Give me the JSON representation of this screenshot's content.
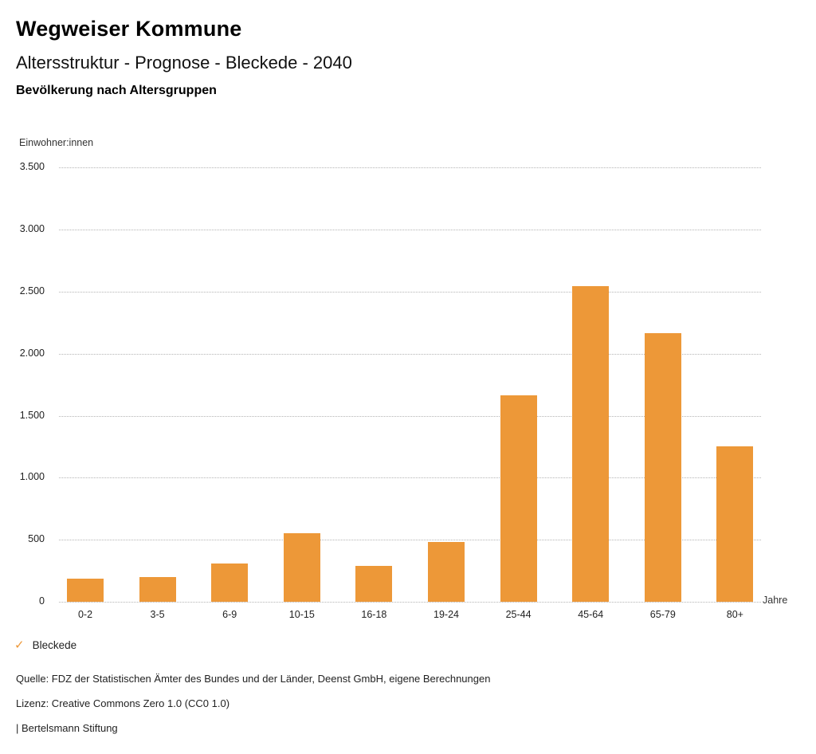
{
  "header": {
    "title": "Wegweiser Kommune",
    "subtitle": "Altersstruktur - Prognose - Bleckede - 2040",
    "chart_label": "Bevölkerung nach Altersgruppen"
  },
  "chart_data": {
    "type": "bar",
    "title": "Bevölkerung nach Altersgruppen",
    "ylabel": "Einwohner:innen",
    "xlabel": "Jahre",
    "categories": [
      "0-2",
      "3-5",
      "6-9",
      "10-15",
      "16-18",
      "19-24",
      "25-44",
      "45-64",
      "65-79",
      "80+"
    ],
    "series": [
      {
        "name": "Bleckede",
        "values": [
          185,
          200,
          310,
          555,
          290,
          480,
          1665,
          2545,
          2165,
          1255
        ]
      }
    ],
    "ylim": [
      0,
      3500
    ],
    "ytick_step": 500,
    "ytick_labels": [
      "0",
      "500",
      "1.000",
      "1.500",
      "2.000",
      "2.500",
      "3.000",
      "3.500"
    ],
    "grid": "horizontal-dotted",
    "legend_position": "bottom-left",
    "bar_color": "#ED9838"
  },
  "legend": {
    "check_icon": "✓",
    "items": [
      {
        "label": "Bleckede",
        "selected": true
      }
    ]
  },
  "footer": {
    "source": "Quelle: FDZ der Statistischen Ämter des Bundes und der Länder, Deenst GmbH, eigene Berechnungen",
    "license": "Lizenz: Creative Commons Zero 1.0 (CC0 1.0)",
    "attribution": "| Bertelsmann Stiftung"
  },
  "colors": {
    "accent": "#ED9838",
    "grid": "#B4B4B4",
    "text": "#222222",
    "background": "#FFFFFF"
  }
}
